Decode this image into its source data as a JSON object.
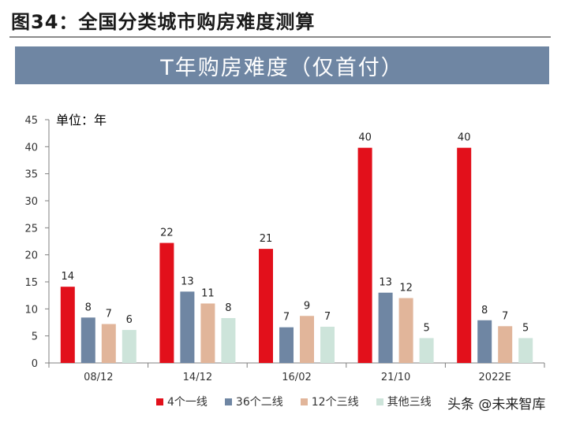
{
  "figure_title": "图34：全国分类城市购房难度测算",
  "watermark": "头条 @未来智库",
  "chart_data": {
    "type": "bar",
    "title": "T年购房难度（仅首付）",
    "unit_label": "单位：年",
    "categories": [
      "08/12",
      "14/12",
      "16/02",
      "21/10",
      "2022E"
    ],
    "series": [
      {
        "name": "4个一线",
        "values": [
          14,
          22,
          21,
          40,
          40
        ],
        "color": "#e2101b"
      },
      {
        "name": "36个二线",
        "values": [
          8,
          13,
          7,
          13,
          8
        ],
        "color": "#6f86a3"
      },
      {
        "name": "12个三线",
        "values": [
          7,
          11,
          9,
          12,
          7
        ],
        "color": "#e1b59a"
      },
      {
        "name": "其他三线",
        "values": [
          6,
          8,
          7,
          5,
          5
        ],
        "color": "#cde4da"
      }
    ],
    "data_labels": [
      [
        "14",
        "8",
        "7",
        "6"
      ],
      [
        "22",
        "13",
        "11",
        "8"
      ],
      [
        "21",
        "7",
        "9",
        "7"
      ],
      [
        "40",
        "13",
        "12",
        "5"
      ],
      [
        "40",
        "8",
        "7",
        "5"
      ]
    ],
    "ylim": [
      0,
      45
    ],
    "yticks": [
      0,
      5,
      10,
      15,
      20,
      25,
      30,
      35,
      40,
      45
    ],
    "ytick_labels": [
      "0",
      "5",
      "10",
      "15",
      "20",
      "25",
      "30",
      "35",
      "40",
      "45"
    ],
    "plotted_values": [
      [
        14.1,
        8.4,
        7.2,
        6.1
      ],
      [
        22.2,
        13.2,
        11.0,
        8.3
      ],
      [
        21.1,
        6.6,
        8.7,
        6.7
      ],
      [
        39.8,
        13.0,
        12.0,
        4.6
      ],
      [
        39.8,
        7.9,
        6.8,
        4.6
      ]
    ],
    "grid": false,
    "legend_position": "bottom"
  }
}
